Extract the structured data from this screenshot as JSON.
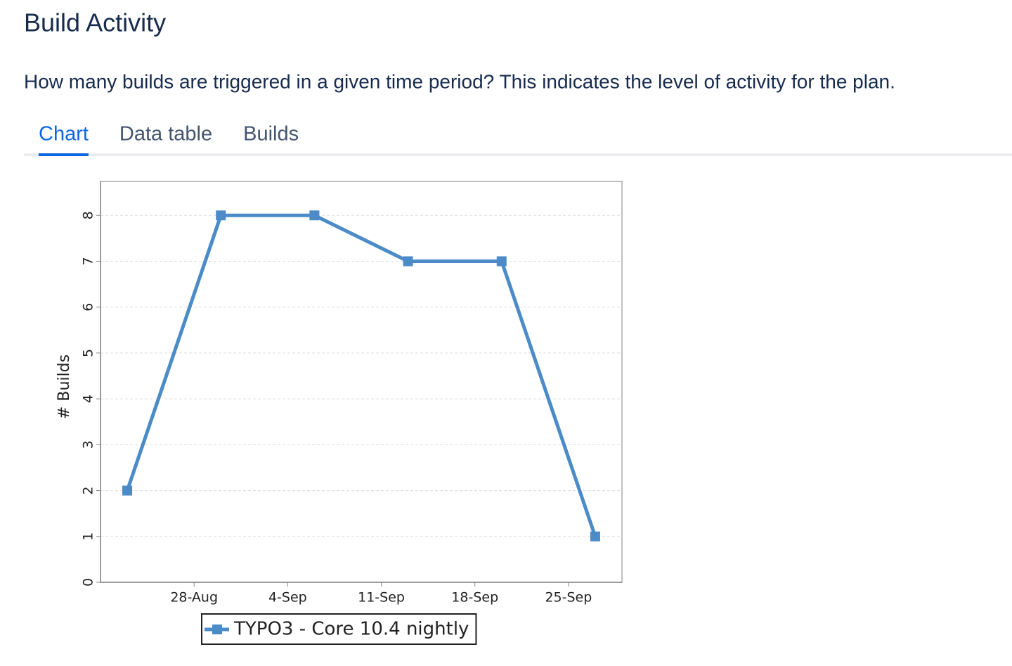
{
  "header": {
    "title": "Build Activity",
    "description": "How many builds are triggered in a given time period? This indicates the level of activity for the plan."
  },
  "tabs": [
    "Chart",
    "Data table",
    "Builds"
  ],
  "selected_tab": 0,
  "chart_data": {
    "type": "line",
    "y_label": "# Builds",
    "x": [
      "23-Aug",
      "30-Aug",
      "6-Sep",
      "13-Sep",
      "20-Sep",
      "27-Sep"
    ],
    "series": [
      {
        "name": "TYPO3 - Core 10.4 nightly",
        "color": "#4a8bc8",
        "values": [
          2,
          8,
          8,
          7,
          7,
          1
        ]
      }
    ],
    "xlim": [
      "21-Aug",
      "29-Sep"
    ],
    "xticks": [
      "28-Aug",
      "4-Sep",
      "11-Sep",
      "18-Sep",
      "25-Sep"
    ],
    "ylim": [
      0,
      8.74
    ],
    "yticks": [
      0,
      1,
      2,
      3,
      4,
      5,
      6,
      7,
      8
    ],
    "grid": true,
    "legend": "bottom"
  }
}
